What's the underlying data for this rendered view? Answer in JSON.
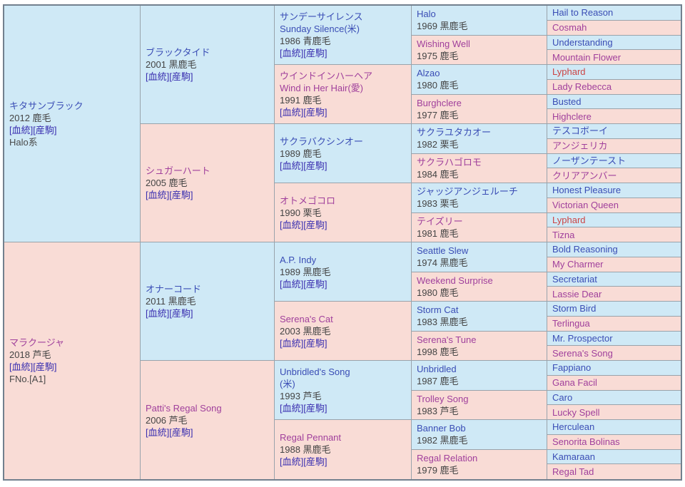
{
  "colors": {
    "male_bg": "#cfe9f6",
    "female_bg": "#f9dcd6",
    "male_name": "#3a4db5",
    "female_name": "#a0409c",
    "dup_name": "#cc4444",
    "link": "#3a2fb0",
    "info_text": "#444444",
    "extra_text": "#4a4a4a",
    "inner_border": "#99a3ab",
    "outer_border": "#72808e"
  },
  "pedigree": {
    "link_pedigree": "[血統]",
    "link_offspring": "[産駒]",
    "generations": {
      "g1": [
        {
          "name": "キタサンブラック",
          "info": "2012 鹿毛",
          "links": true,
          "extra": "Halo系",
          "sex": "m"
        },
        {
          "name": "マラクージャ",
          "info": "2018 芦毛",
          "links": true,
          "extra": "FNo.[A1]",
          "sex": "f"
        }
      ],
      "g2": [
        {
          "name": "ブラックタイド",
          "info": "2001 黒鹿毛",
          "links": true,
          "sex": "m"
        },
        {
          "name": "シュガーハート",
          "info": "2005 鹿毛",
          "links": true,
          "sex": "f"
        },
        {
          "name": "オナーコード",
          "info": "2011 黒鹿毛",
          "links": true,
          "sex": "m"
        },
        {
          "name": "Patti's Regal Song",
          "info": "2006 芦毛",
          "links": true,
          "sex": "f"
        }
      ],
      "g3": [
        {
          "name": "サンデーサイレンス",
          "name2": "Sunday Silence(米)",
          "info": "1986 青鹿毛",
          "links": true,
          "sex": "m"
        },
        {
          "name": "ウインドインハーヘア",
          "name2": "Wind in Her Hair(愛)",
          "info": "1991 鹿毛",
          "links": true,
          "sex": "f"
        },
        {
          "name": "サクラバクシンオー",
          "info": "1989 鹿毛",
          "links": true,
          "sex": "m"
        },
        {
          "name": "オトメゴコロ",
          "info": "1990 栗毛",
          "links": true,
          "sex": "f"
        },
        {
          "name": "A.P. Indy",
          "info": "1989 黒鹿毛",
          "links": true,
          "sex": "m"
        },
        {
          "name": "Serena's Cat",
          "info": "2003 黒鹿毛",
          "links": true,
          "sex": "f"
        },
        {
          "name": "Unbridled's Song",
          "name2": "(米)",
          "info": "1993 芦毛",
          "links": true,
          "sex": "m"
        },
        {
          "name": "Regal Pennant",
          "info": "1988 黒鹿毛",
          "links": true,
          "sex": "f"
        }
      ],
      "g4": [
        {
          "name": "Halo",
          "info": "1969 黒鹿毛",
          "sex": "m"
        },
        {
          "name": "Wishing Well",
          "info": "1975 鹿毛",
          "sex": "f"
        },
        {
          "name": "Alzao",
          "info": "1980 鹿毛",
          "sex": "m"
        },
        {
          "name": "Burghclere",
          "info": "1977 鹿毛",
          "sex": "f"
        },
        {
          "name": "サクラユタカオー",
          "info": "1982 栗毛",
          "sex": "m"
        },
        {
          "name": "サクラハゴロモ",
          "info": "1984 鹿毛",
          "sex": "f"
        },
        {
          "name": "ジャッジアンジェルーチ",
          "info": "1983 栗毛",
          "sex": "m"
        },
        {
          "name": "テイズリー",
          "info": "1981 鹿毛",
          "sex": "f"
        },
        {
          "name": "Seattle Slew",
          "info": "1974 黒鹿毛",
          "sex": "m"
        },
        {
          "name": "Weekend Surprise",
          "info": "1980 鹿毛",
          "sex": "f"
        },
        {
          "name": "Storm Cat",
          "info": "1983 黒鹿毛",
          "sex": "m"
        },
        {
          "name": "Serena's Tune",
          "info": "1998 鹿毛",
          "sex": "f"
        },
        {
          "name": "Unbridled",
          "info": "1987 鹿毛",
          "sex": "m"
        },
        {
          "name": "Trolley Song",
          "info": "1983 芦毛",
          "sex": "f"
        },
        {
          "name": "Banner Bob",
          "info": "1982 黒鹿毛",
          "sex": "m"
        },
        {
          "name": "Regal Relation",
          "info": "1979 鹿毛",
          "sex": "f"
        }
      ],
      "g5": [
        {
          "name": "Hail to Reason",
          "sex": "m"
        },
        {
          "name": "Cosmah",
          "sex": "f"
        },
        {
          "name": "Understanding",
          "sex": "m"
        },
        {
          "name": "Mountain Flower",
          "sex": "f"
        },
        {
          "name": "Lyphard",
          "sex": "m",
          "dup": true
        },
        {
          "name": "Lady Rebecca",
          "sex": "f"
        },
        {
          "name": "Busted",
          "sex": "m"
        },
        {
          "name": "Highclere",
          "sex": "f"
        },
        {
          "name": "テスコボーイ",
          "sex": "m"
        },
        {
          "name": "アンジェリカ",
          "sex": "f"
        },
        {
          "name": "ノーザンテースト",
          "sex": "m"
        },
        {
          "name": "クリアアンバー",
          "sex": "f"
        },
        {
          "name": "Honest Pleasure",
          "sex": "m"
        },
        {
          "name": "Victorian Queen",
          "sex": "f"
        },
        {
          "name": "Lyphard",
          "sex": "m",
          "dup": true
        },
        {
          "name": "Tizna",
          "sex": "f"
        },
        {
          "name": "Bold Reasoning",
          "sex": "m"
        },
        {
          "name": "My Charmer",
          "sex": "f"
        },
        {
          "name": "Secretariat",
          "sex": "m"
        },
        {
          "name": "Lassie Dear",
          "sex": "f"
        },
        {
          "name": "Storm Bird",
          "sex": "m"
        },
        {
          "name": "Terlingua",
          "sex": "f"
        },
        {
          "name": "Mr. Prospector",
          "sex": "m"
        },
        {
          "name": "Serena's Song",
          "sex": "f"
        },
        {
          "name": "Fappiano",
          "sex": "m"
        },
        {
          "name": "Gana Facil",
          "sex": "f"
        },
        {
          "name": "Caro",
          "sex": "m"
        },
        {
          "name": "Lucky Spell",
          "sex": "f"
        },
        {
          "name": "Herculean",
          "sex": "m"
        },
        {
          "name": "Senorita Bolinas",
          "sex": "f"
        },
        {
          "name": "Kamaraan",
          "sex": "m"
        },
        {
          "name": "Regal Tad",
          "sex": "f"
        }
      ]
    }
  }
}
